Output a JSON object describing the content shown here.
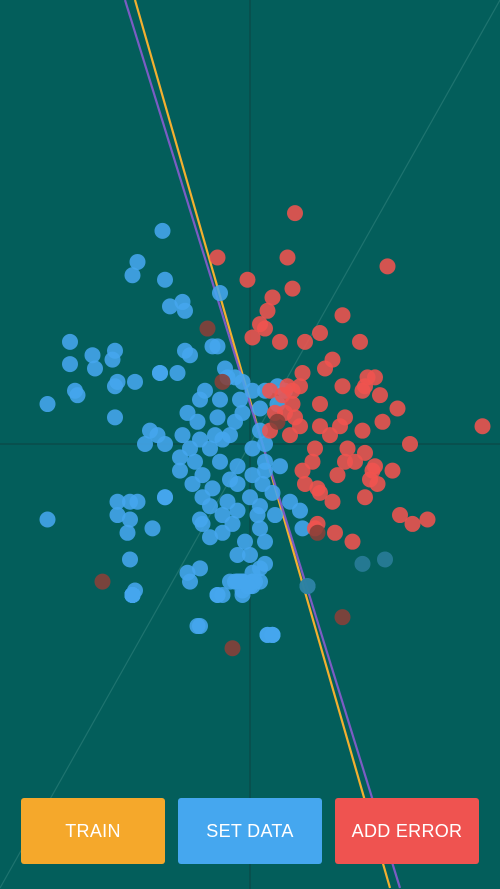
{
  "colors": {
    "background": "#035e5b",
    "axis": "#0b4846",
    "diagonal": "#2a7d78",
    "class_a": "#46a6ee",
    "class_b": "#f0534f",
    "line_yellow": "#f3b02f",
    "line_purple": "#7b5cc4"
  },
  "buttons": {
    "train": {
      "label": "TRAIN",
      "color": "#f5a82b"
    },
    "set_data": {
      "label": "SET DATA",
      "color": "#45a7ef"
    },
    "add_error": {
      "label": "ADD ERROR",
      "color": "#ef5350"
    }
  },
  "chart_data": {
    "type": "scatter",
    "xlim": [
      -1,
      1
    ],
    "ylim": [
      -1,
      1
    ],
    "grid": false,
    "series": [
      {
        "color": "#46a6ee",
        "points": [
          [
            -0.35,
            0.48
          ],
          [
            -0.45,
            0.41
          ],
          [
            -0.34,
            0.37
          ],
          [
            -0.47,
            0.38
          ],
          [
            -0.27,
            0.32
          ],
          [
            -0.32,
            0.31
          ],
          [
            -0.26,
            0.3
          ],
          [
            -0.15,
            0.22
          ],
          [
            -0.12,
            0.34
          ],
          [
            -0.72,
            0.23
          ],
          [
            -0.63,
            0.2
          ],
          [
            -0.54,
            0.21
          ],
          [
            -0.55,
            0.19
          ],
          [
            -0.26,
            0.21
          ],
          [
            -0.24,
            0.2
          ],
          [
            -0.13,
            0.22
          ],
          [
            -0.36,
            0.16
          ],
          [
            -0.72,
            0.18
          ],
          [
            -0.62,
            0.17
          ],
          [
            -0.53,
            0.14
          ],
          [
            -0.46,
            0.14
          ],
          [
            -0.36,
            0.16
          ],
          [
            -0.29,
            0.16
          ],
          [
            -0.1,
            0.17
          ],
          [
            -0.09,
            0.15
          ],
          [
            -0.06,
            0.15
          ],
          [
            -0.03,
            0.14
          ],
          [
            -0.7,
            0.12
          ],
          [
            -0.81,
            0.09
          ],
          [
            -0.69,
            0.11
          ],
          [
            -0.54,
            0.13
          ],
          [
            -0.18,
            0.12
          ],
          [
            -0.2,
            0.1
          ],
          [
            -0.12,
            0.1
          ],
          [
            -0.04,
            0.1
          ],
          [
            0.01,
            0.12
          ],
          [
            0.06,
            0.12
          ],
          [
            0.11,
            0.13
          ],
          [
            0.14,
            0.12
          ],
          [
            -0.54,
            0.06
          ],
          [
            -0.25,
            0.07
          ],
          [
            -0.21,
            0.05
          ],
          [
            -0.13,
            0.06
          ],
          [
            -0.06,
            0.05
          ],
          [
            -0.03,
            0.07
          ],
          [
            0.04,
            0.08
          ],
          [
            0.11,
            0.09
          ],
          [
            -0.4,
            0.03
          ],
          [
            -0.37,
            0.02
          ],
          [
            -0.27,
            0.02
          ],
          [
            -0.2,
            0.01
          ],
          [
            -0.14,
            0.02
          ],
          [
            -0.08,
            0.02
          ],
          [
            0.04,
            0.03
          ],
          [
            -0.42,
            0.0
          ],
          [
            -0.34,
            0.0
          ],
          [
            -0.24,
            -0.01
          ],
          [
            -0.16,
            -0.01
          ],
          [
            -0.11,
            0.01
          ],
          [
            0.01,
            -0.01
          ],
          [
            0.06,
            0.0
          ],
          [
            -0.28,
            -0.03
          ],
          [
            -0.22,
            -0.04
          ],
          [
            -0.12,
            -0.04
          ],
          [
            -0.05,
            -0.05
          ],
          [
            0.06,
            -0.04
          ],
          [
            0.12,
            -0.05
          ],
          [
            -0.28,
            -0.06
          ],
          [
            -0.19,
            -0.07
          ],
          [
            -0.08,
            -0.08
          ],
          [
            0.01,
            -0.07
          ],
          [
            0.06,
            -0.06
          ],
          [
            -0.23,
            -0.09
          ],
          [
            -0.15,
            -0.1
          ],
          [
            -0.05,
            -0.09
          ],
          [
            0.05,
            -0.09
          ],
          [
            -0.34,
            -0.12
          ],
          [
            -0.19,
            -0.12
          ],
          [
            -0.09,
            -0.13
          ],
          [
            0.0,
            -0.12
          ],
          [
            0.09,
            -0.11
          ],
          [
            -0.16,
            -0.14
          ],
          [
            -0.05,
            -0.15
          ],
          [
            0.04,
            -0.14
          ],
          [
            -0.53,
            -0.13
          ],
          [
            -0.48,
            -0.13
          ],
          [
            -0.45,
            -0.13
          ],
          [
            -0.34,
            -0.12
          ],
          [
            -0.2,
            -0.17
          ],
          [
            -0.11,
            -0.16
          ],
          [
            0.03,
            -0.16
          ],
          [
            0.1,
            -0.16
          ],
          [
            0.16,
            -0.13
          ],
          [
            0.2,
            -0.15
          ],
          [
            -0.48,
            -0.17
          ],
          [
            -0.53,
            -0.16
          ],
          [
            -0.19,
            -0.18
          ],
          [
            -0.07,
            -0.18
          ],
          [
            0.04,
            -0.19
          ],
          [
            0.21,
            -0.19
          ],
          [
            -0.81,
            -0.17
          ],
          [
            -0.49,
            -0.2
          ],
          [
            -0.39,
            -0.19
          ],
          [
            -0.16,
            -0.21
          ],
          [
            -0.11,
            -0.2
          ],
          [
            -0.02,
            -0.22
          ],
          [
            0.06,
            -0.22
          ],
          [
            -0.05,
            -0.25
          ],
          [
            -0.48,
            -0.26
          ],
          [
            -0.2,
            -0.28
          ],
          [
            0.01,
            -0.29
          ],
          [
            -0.13,
            -0.34
          ],
          [
            -0.47,
            -0.34
          ],
          [
            0.01,
            -0.31
          ],
          [
            0.04,
            -0.31
          ],
          [
            -0.47,
            -0.34
          ],
          [
            -0.03,
            -0.33
          ],
          [
            0.01,
            -0.32
          ],
          [
            -0.03,
            -0.31
          ],
          [
            -0.04,
            -0.31
          ],
          [
            -0.05,
            -0.31
          ],
          [
            -0.08,
            -0.31
          ],
          [
            -0.47,
            -0.34
          ],
          [
            0.02,
            -0.31
          ],
          [
            -0.47,
            -0.34
          ],
          [
            -0.05,
            -0.31
          ],
          [
            -0.25,
            -0.29
          ],
          [
            -0.47,
            -0.34
          ],
          [
            -0.03,
            -0.31
          ],
          [
            -0.47,
            -0.34
          ],
          [
            -0.04,
            -0.31
          ],
          [
            -0.24,
            -0.31
          ],
          [
            -0.03,
            -0.31
          ],
          [
            -0.47,
            -0.34
          ],
          [
            -0.04,
            -0.31
          ],
          [
            -0.21,
            -0.41
          ],
          [
            -0.04,
            -0.31
          ],
          [
            -0.47,
            -0.34
          ],
          [
            -0.46,
            -0.33
          ],
          [
            -0.01,
            -0.32
          ],
          [
            0.0,
            -0.32
          ],
          [
            -0.47,
            -0.34
          ],
          [
            0.01,
            -0.31
          ],
          [
            -0.47,
            -0.34
          ],
          [
            -0.03,
            -0.31
          ],
          [
            -0.47,
            -0.34
          ],
          [
            -0.04,
            -0.31
          ],
          [
            -0.47,
            -0.34
          ],
          [
            -0.05,
            -0.31
          ],
          [
            -0.47,
            -0.34
          ],
          [
            -0.05,
            -0.31
          ],
          [
            -0.47,
            -0.34
          ],
          [
            -0.06,
            -0.31
          ],
          [
            -0.47,
            -0.34
          ],
          [
            -0.04,
            -0.31
          ],
          [
            -0.47,
            -0.34
          ],
          [
            -0.04,
            -0.31
          ],
          [
            -0.47,
            -0.34
          ],
          [
            -0.03,
            -0.31
          ],
          [
            0.01,
            -0.31
          ],
          [
            -0.47,
            -0.34
          ],
          [
            -0.03,
            -0.31
          ],
          [
            -0.03,
            -0.34
          ],
          [
            0.07,
            -0.43
          ],
          [
            0.09,
            -0.43
          ],
          [
            -0.2,
            -0.41
          ],
          [
            0.07,
            -0.43
          ],
          [
            -0.03,
            -0.31
          ],
          [
            -0.47,
            -0.34
          ],
          [
            -0.04,
            -0.31
          ],
          [
            -0.47,
            -0.34
          ],
          [
            -0.03,
            -0.31
          ],
          [
            -0.47,
            -0.34
          ],
          [
            -0.04,
            -0.31
          ],
          [
            -0.47,
            -0.34
          ],
          [
            -0.04,
            -0.31
          ],
          [
            -0.47,
            -0.34
          ],
          [
            -0.04,
            -0.31
          ],
          [
            -0.47,
            -0.34
          ],
          [
            -0.03,
            -0.31
          ],
          [
            0.09,
            -0.43
          ],
          [
            0.23,
            -0.32
          ],
          [
            -0.47,
            -0.34
          ],
          [
            -0.03,
            -0.31
          ],
          [
            0.04,
            -0.28
          ],
          [
            -0.13,
            -0.34
          ],
          [
            -0.04,
            -0.31
          ],
          [
            -0.47,
            -0.34
          ],
          [
            -0.03,
            -0.31
          ],
          [
            0.06,
            -0.27
          ],
          [
            -0.47,
            -0.34
          ],
          [
            -0.03,
            -0.31
          ],
          [
            -0.47,
            -0.34
          ],
          [
            -0.04,
            -0.31
          ],
          [
            -0.47,
            -0.34
          ],
          [
            -0.04,
            -0.31
          ],
          [
            -0.47,
            -0.34
          ],
          [
            -0.01,
            -0.32
          ],
          [
            0.0,
            -0.25
          ],
          [
            -0.47,
            -0.34
          ],
          [
            -0.05,
            -0.31
          ],
          [
            0.09,
            -0.43
          ],
          [
            -0.11,
            -0.34
          ],
          [
            -0.04,
            -0.31
          ]
        ]
      },
      {
        "color": "#f0534f",
        "points": [
          [
            0.18,
            0.52
          ],
          [
            0.15,
            0.42
          ],
          [
            0.55,
            0.4
          ],
          [
            -0.13,
            0.42
          ],
          [
            -0.01,
            0.37
          ],
          [
            0.17,
            0.35
          ],
          [
            0.09,
            0.33
          ],
          [
            0.37,
            0.29
          ],
          [
            0.07,
            0.3
          ],
          [
            0.04,
            0.27
          ],
          [
            0.06,
            0.26
          ],
          [
            0.01,
            0.24
          ],
          [
            0.22,
            0.23
          ],
          [
            0.28,
            0.25
          ],
          [
            0.12,
            0.23
          ],
          [
            0.44,
            0.23
          ],
          [
            0.33,
            0.19
          ],
          [
            0.21,
            0.16
          ],
          [
            0.3,
            0.17
          ],
          [
            0.47,
            0.15
          ],
          [
            0.5,
            0.15
          ],
          [
            0.15,
            0.13
          ],
          [
            0.37,
            0.13
          ],
          [
            0.46,
            0.13
          ],
          [
            0.45,
            0.12
          ],
          [
            0.52,
            0.11
          ],
          [
            0.08,
            0.12
          ],
          [
            0.17,
            0.12
          ],
          [
            0.2,
            0.13
          ],
          [
            0.13,
            0.11
          ],
          [
            0.17,
            0.09
          ],
          [
            0.28,
            0.09
          ],
          [
            0.59,
            0.08
          ],
          [
            0.1,
            0.07
          ],
          [
            0.14,
            0.07
          ],
          [
            0.18,
            0.06
          ],
          [
            0.38,
            0.06
          ],
          [
            0.53,
            0.05
          ],
          [
            0.2,
            0.04
          ],
          [
            0.28,
            0.04
          ],
          [
            0.36,
            0.04
          ],
          [
            0.45,
            0.03
          ],
          [
            0.08,
            0.03
          ],
          [
            0.16,
            0.02
          ],
          [
            0.32,
            0.02
          ],
          [
            0.64,
            0.0
          ],
          [
            0.93,
            0.04
          ],
          [
            0.39,
            -0.01
          ],
          [
            0.26,
            -0.01
          ],
          [
            0.46,
            -0.02
          ],
          [
            0.25,
            -0.04
          ],
          [
            0.38,
            -0.04
          ],
          [
            0.21,
            -0.06
          ],
          [
            0.42,
            -0.04
          ],
          [
            0.5,
            -0.05
          ],
          [
            0.35,
            -0.07
          ],
          [
            0.57,
            -0.06
          ],
          [
            0.49,
            -0.06
          ],
          [
            0.22,
            -0.09
          ],
          [
            0.48,
            -0.08
          ],
          [
            0.51,
            -0.09
          ],
          [
            0.27,
            -0.1
          ],
          [
            0.28,
            -0.11
          ],
          [
            0.33,
            -0.13
          ],
          [
            0.46,
            -0.12
          ],
          [
            0.6,
            -0.16
          ],
          [
            0.71,
            -0.17
          ],
          [
            0.26,
            -0.19
          ],
          [
            0.34,
            -0.2
          ],
          [
            0.41,
            -0.22
          ],
          [
            0.65,
            -0.18
          ],
          [
            0.27,
            -0.18
          ]
        ]
      },
      {
        "color": "#8a4038",
        "points": [
          [
            -0.59,
            -0.31
          ],
          [
            -0.07,
            -0.46
          ],
          [
            0.37,
            -0.39
          ],
          [
            -0.17,
            0.26
          ],
          [
            -0.11,
            0.14
          ],
          [
            0.11,
            0.05
          ],
          [
            0.27,
            -0.2
          ]
        ]
      },
      {
        "color": "#2a7d9a",
        "points": [
          [
            0.45,
            -0.27
          ],
          [
            0.54,
            -0.26
          ],
          [
            0.23,
            -0.32
          ]
        ]
      }
    ],
    "lines": [
      {
        "color": "#f3b02f",
        "p1": [
          -0.46,
          1.0
        ],
        "p2": [
          0.56,
          -1.0
        ]
      },
      {
        "color": "#7b5cc4",
        "p1": [
          -0.5,
          1.0
        ],
        "p2": [
          0.6,
          -1.0
        ]
      }
    ]
  }
}
